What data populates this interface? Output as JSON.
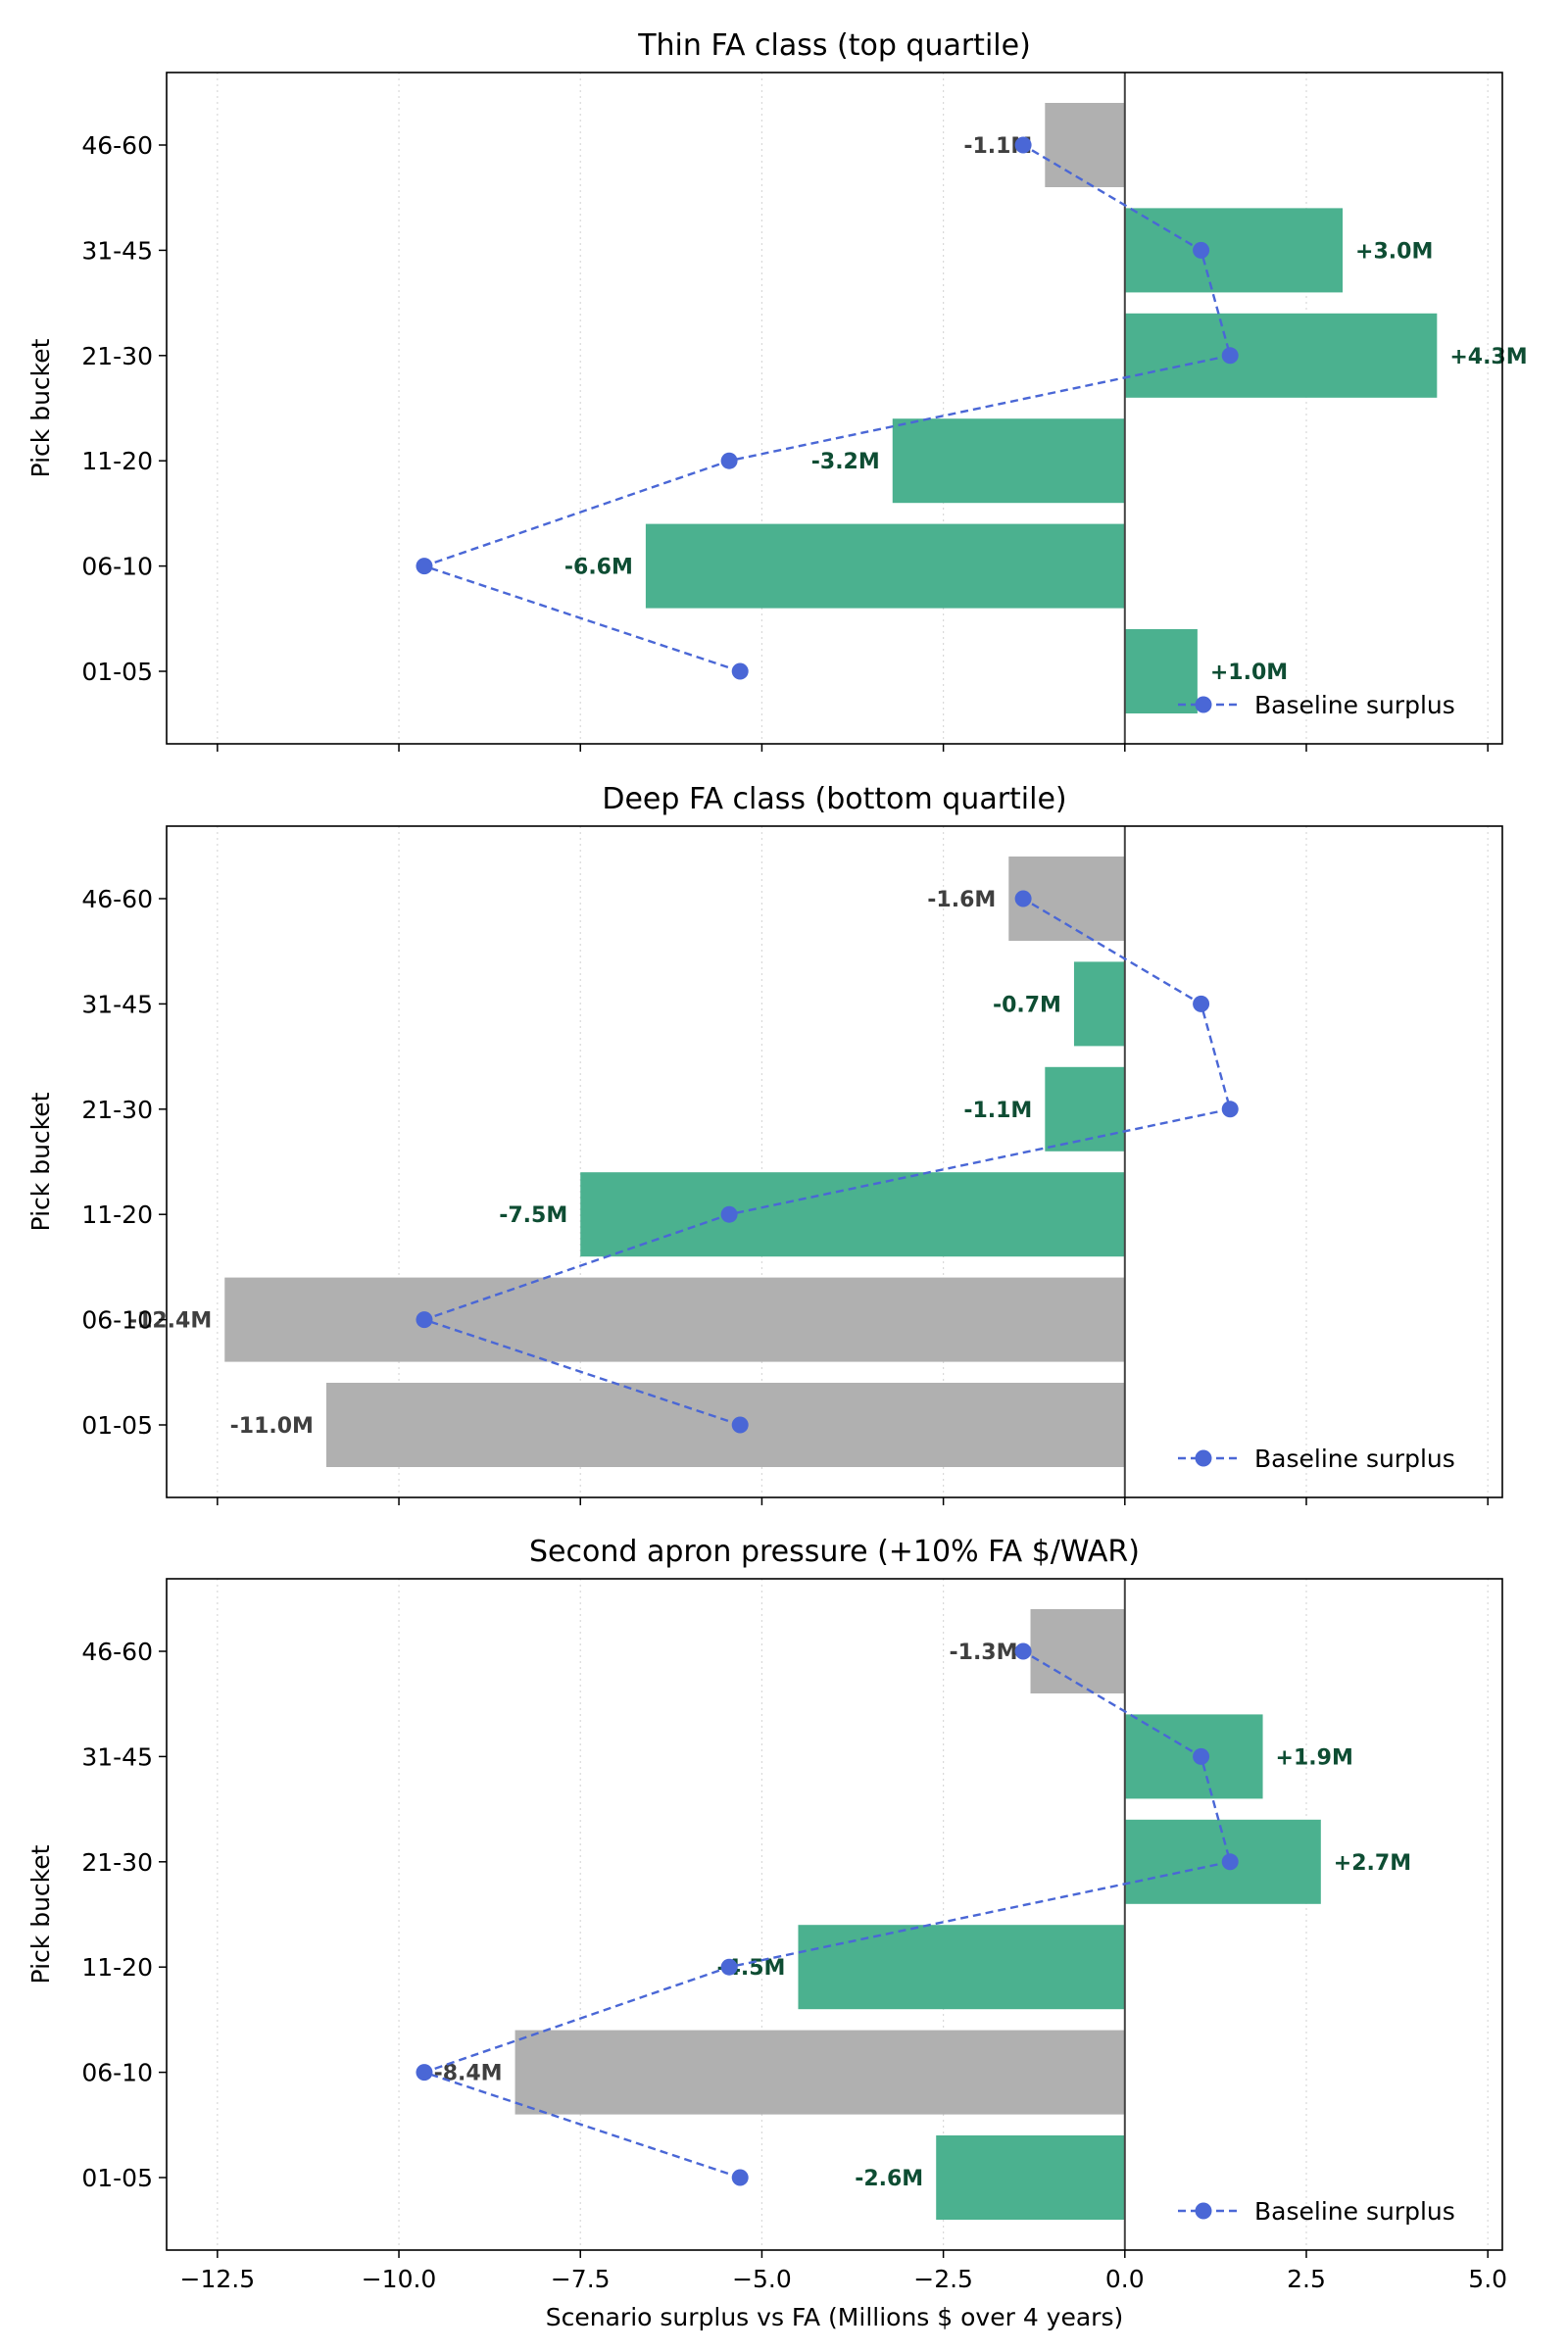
{
  "chart_data": {
    "type": "bar",
    "orientation": "horizontal",
    "categories": [
      "01-05",
      "06-10",
      "11-20",
      "21-30",
      "31-45",
      "46-60"
    ],
    "ylabel": "Pick bucket",
    "xlabel": "Scenario surplus vs FA (Millions $ over 4 years)",
    "xlim": [
      -13.2,
      5.2
    ],
    "xticks": [
      -12.5,
      -10.0,
      -7.5,
      -5.0,
      -2.5,
      0.0,
      2.5,
      5.0
    ],
    "xtick_labels": [
      "−12.5",
      "−10.0",
      "−7.5",
      "−5.0",
      "−2.5",
      "0.0",
      "2.5",
      "5.0"
    ],
    "grid": "vertical dotted",
    "shared_x": true,
    "legend_placement": "lower-right",
    "baseline": {
      "name": "Baseline surplus",
      "style": "dashed line with circle markers",
      "values": [
        -5.3,
        -9.65,
        -5.45,
        1.45,
        1.05,
        -1.4
      ]
    },
    "colors": {
      "bar_green": "#4bb18f",
      "bar_gray": "#b0b0b0",
      "label_green": "#0e4d33",
      "label_gray": "#3f3f3f",
      "baseline": "#4a67d6"
    },
    "panels": [
      {
        "title": "Thin FA class (top quartile)",
        "values": [
          1.0,
          -6.6,
          -3.2,
          4.3,
          3.0,
          -1.1
        ],
        "labels": [
          "+1.0M",
          "-6.6M",
          "-3.2M",
          "+4.3M",
          "+3.0M",
          "-1.1M"
        ],
        "bar_colors": [
          "green",
          "green",
          "green",
          "green",
          "green",
          "gray"
        ]
      },
      {
        "title": "Deep FA class (bottom quartile)",
        "values": [
          -11.0,
          -12.4,
          -7.5,
          -1.1,
          -0.7,
          -1.6
        ],
        "labels": [
          "-11.0M",
          "-12.4M",
          "-7.5M",
          "-1.1M",
          "-0.7M",
          "-1.6M"
        ],
        "bar_colors": [
          "gray",
          "gray",
          "green",
          "green",
          "green",
          "gray"
        ]
      },
      {
        "title": "Second apron pressure (+10% FA $/WAR)",
        "values": [
          -2.6,
          -8.4,
          -4.5,
          2.7,
          1.9,
          -1.3
        ],
        "labels": [
          "-2.6M",
          "-8.4M",
          "-4.5M",
          "+2.7M",
          "+1.9M",
          "-1.3M"
        ],
        "bar_colors": [
          "green",
          "gray",
          "green",
          "green",
          "green",
          "gray"
        ]
      }
    ]
  }
}
